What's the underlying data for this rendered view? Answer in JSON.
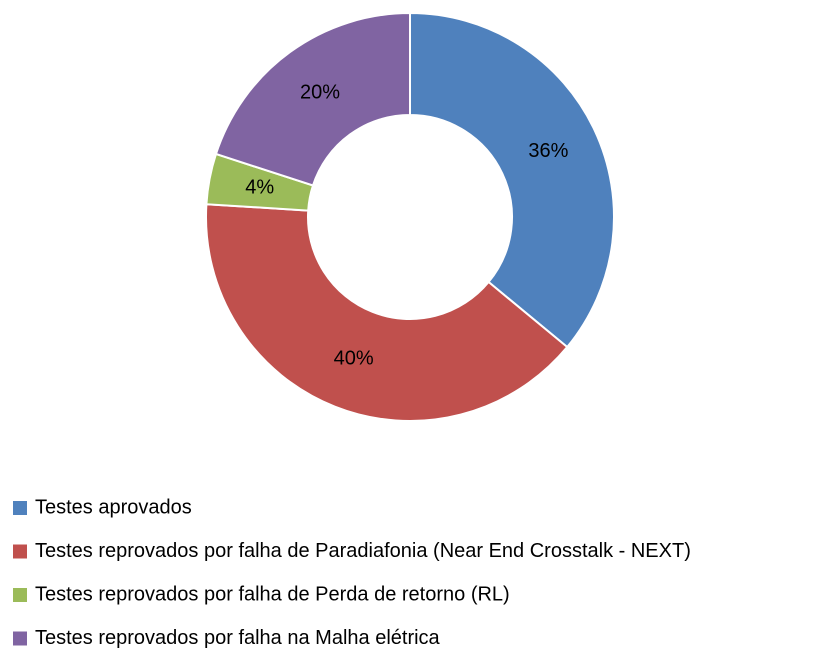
{
  "chart_data": {
    "type": "doughnut",
    "categories": [
      "Testes aprovados",
      "Testes reprovados por falha de Paradiafonia (Near End Crosstalk - NEXT)",
      "Testes reprovados por falha de Perda de retorno (RL)",
      "Testes reprovados por falha na Malha elétrica"
    ],
    "values": [
      36,
      40,
      4,
      20
    ],
    "value_labels": [
      "36%",
      "40%",
      "4%",
      "20%"
    ],
    "colors": [
      "#4f81bd",
      "#c0504d",
      "#9bbb59",
      "#8064a2"
    ],
    "legend": "bottom-left"
  }
}
